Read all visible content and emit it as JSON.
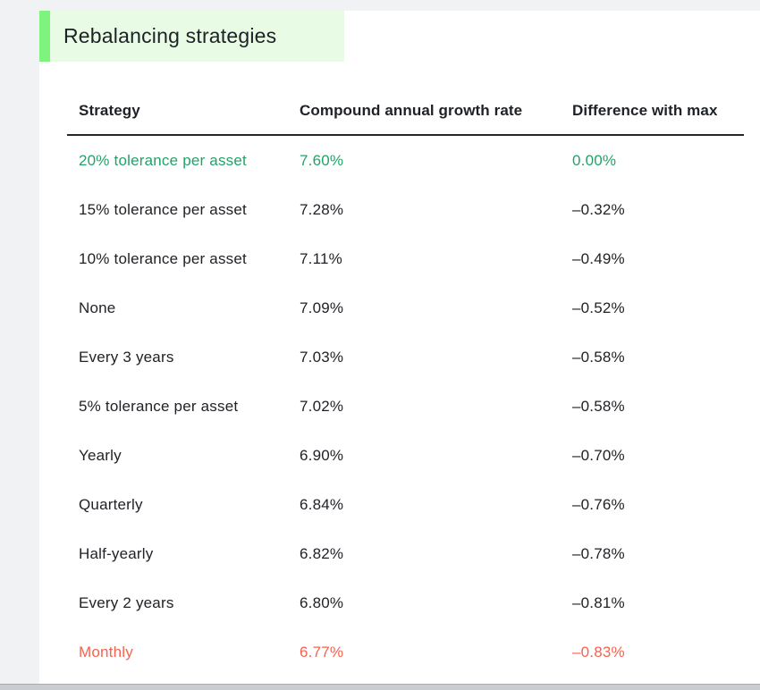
{
  "page": {
    "title": "Rebalancing strategies"
  },
  "colors": {
    "accent_bar_green": "#7ef47f",
    "title_highlight_green": "#e8fbe5",
    "best_row_green": "#23a269",
    "worst_row_red": "#f7624e",
    "body_text": "#212227",
    "page_chrome_gray": "#f1f2f4"
  },
  "table": {
    "columns": [
      "Strategy",
      "Compound annual growth rate",
      "Difference with max"
    ],
    "rows": [
      {
        "strategy": "20% tolerance per asset",
        "cagr": "7.60%",
        "diff": "0.00%"
      },
      {
        "strategy": "15% tolerance per asset",
        "cagr": "7.28%",
        "diff": "–0.32%"
      },
      {
        "strategy": "10% tolerance per asset",
        "cagr": "7.11%",
        "diff": "–0.49%"
      },
      {
        "strategy": "None",
        "cagr": "7.09%",
        "diff": "–0.52%"
      },
      {
        "strategy": "Every 3 years",
        "cagr": "7.03%",
        "diff": "–0.58%"
      },
      {
        "strategy": "5% tolerance per asset",
        "cagr": "7.02%",
        "diff": "–0.58%"
      },
      {
        "strategy": "Yearly",
        "cagr": "6.90%",
        "diff": "–0.70%"
      },
      {
        "strategy": "Quarterly",
        "cagr": "6.84%",
        "diff": "–0.76%"
      },
      {
        "strategy": "Half-yearly",
        "cagr": "6.82%",
        "diff": "–0.78%"
      },
      {
        "strategy": "Every 2 years",
        "cagr": "6.80%",
        "diff": "–0.81%"
      },
      {
        "strategy": "Monthly",
        "cagr": "6.77%",
        "diff": "–0.83%"
      }
    ]
  },
  "chart_data": {
    "type": "table",
    "title": "Rebalancing strategies",
    "columns": [
      "Strategy",
      "Compound annual growth rate",
      "Difference with max"
    ],
    "strategies": [
      "20% tolerance per asset",
      "15% tolerance per asset",
      "10% tolerance per asset",
      "None",
      "Every 3 years",
      "5% tolerance per asset",
      "Yearly",
      "Quarterly",
      "Half-yearly",
      "Every 2 years",
      "Monthly"
    ],
    "cagr_percent": [
      7.6,
      7.28,
      7.11,
      7.09,
      7.03,
      7.02,
      6.9,
      6.84,
      6.82,
      6.8,
      6.77
    ],
    "difference_with_max_percent": [
      0.0,
      -0.32,
      -0.49,
      -0.52,
      -0.58,
      -0.58,
      -0.7,
      -0.76,
      -0.78,
      -0.81,
      -0.83
    ]
  }
}
